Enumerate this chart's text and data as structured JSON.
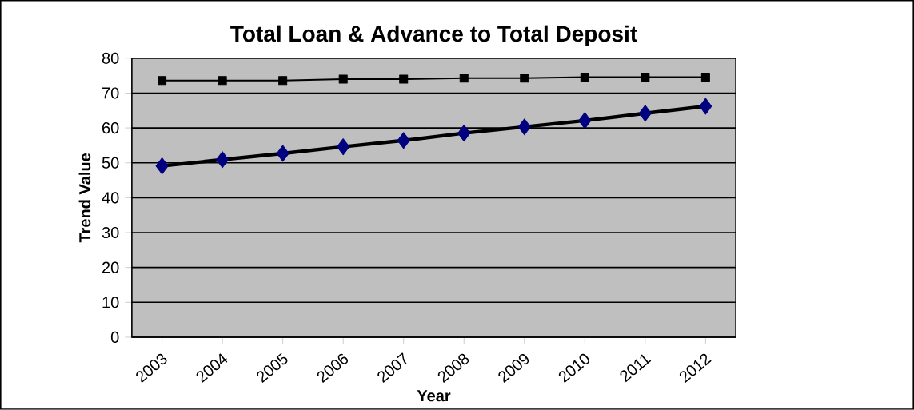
{
  "chart_data": {
    "type": "line",
    "title": "Total Loan & Advance  to Total Deposit",
    "xlabel": "Year",
    "ylabel": "Trend Value",
    "categories": [
      "2003",
      "2004",
      "2005",
      "2006",
      "2007",
      "2008",
      "2009",
      "2010",
      "2011",
      "2012"
    ],
    "series": [
      {
        "color": "#000080",
        "marker": "diamond",
        "values": [
          49.1,
          50.9,
          52.7,
          54.6,
          56.4,
          58.5,
          60.3,
          62.1,
          64.2,
          66.2
        ]
      },
      {
        "color": "#000000",
        "marker": "square",
        "values": [
          73.6,
          73.6,
          73.6,
          74.0,
          74.0,
          74.3,
          74.3,
          74.6,
          74.6,
          74.6
        ]
      }
    ],
    "ylim": [
      0,
      80
    ],
    "yticks": [
      0,
      10,
      20,
      30,
      40,
      50,
      60,
      70,
      80
    ],
    "grid": "y"
  }
}
